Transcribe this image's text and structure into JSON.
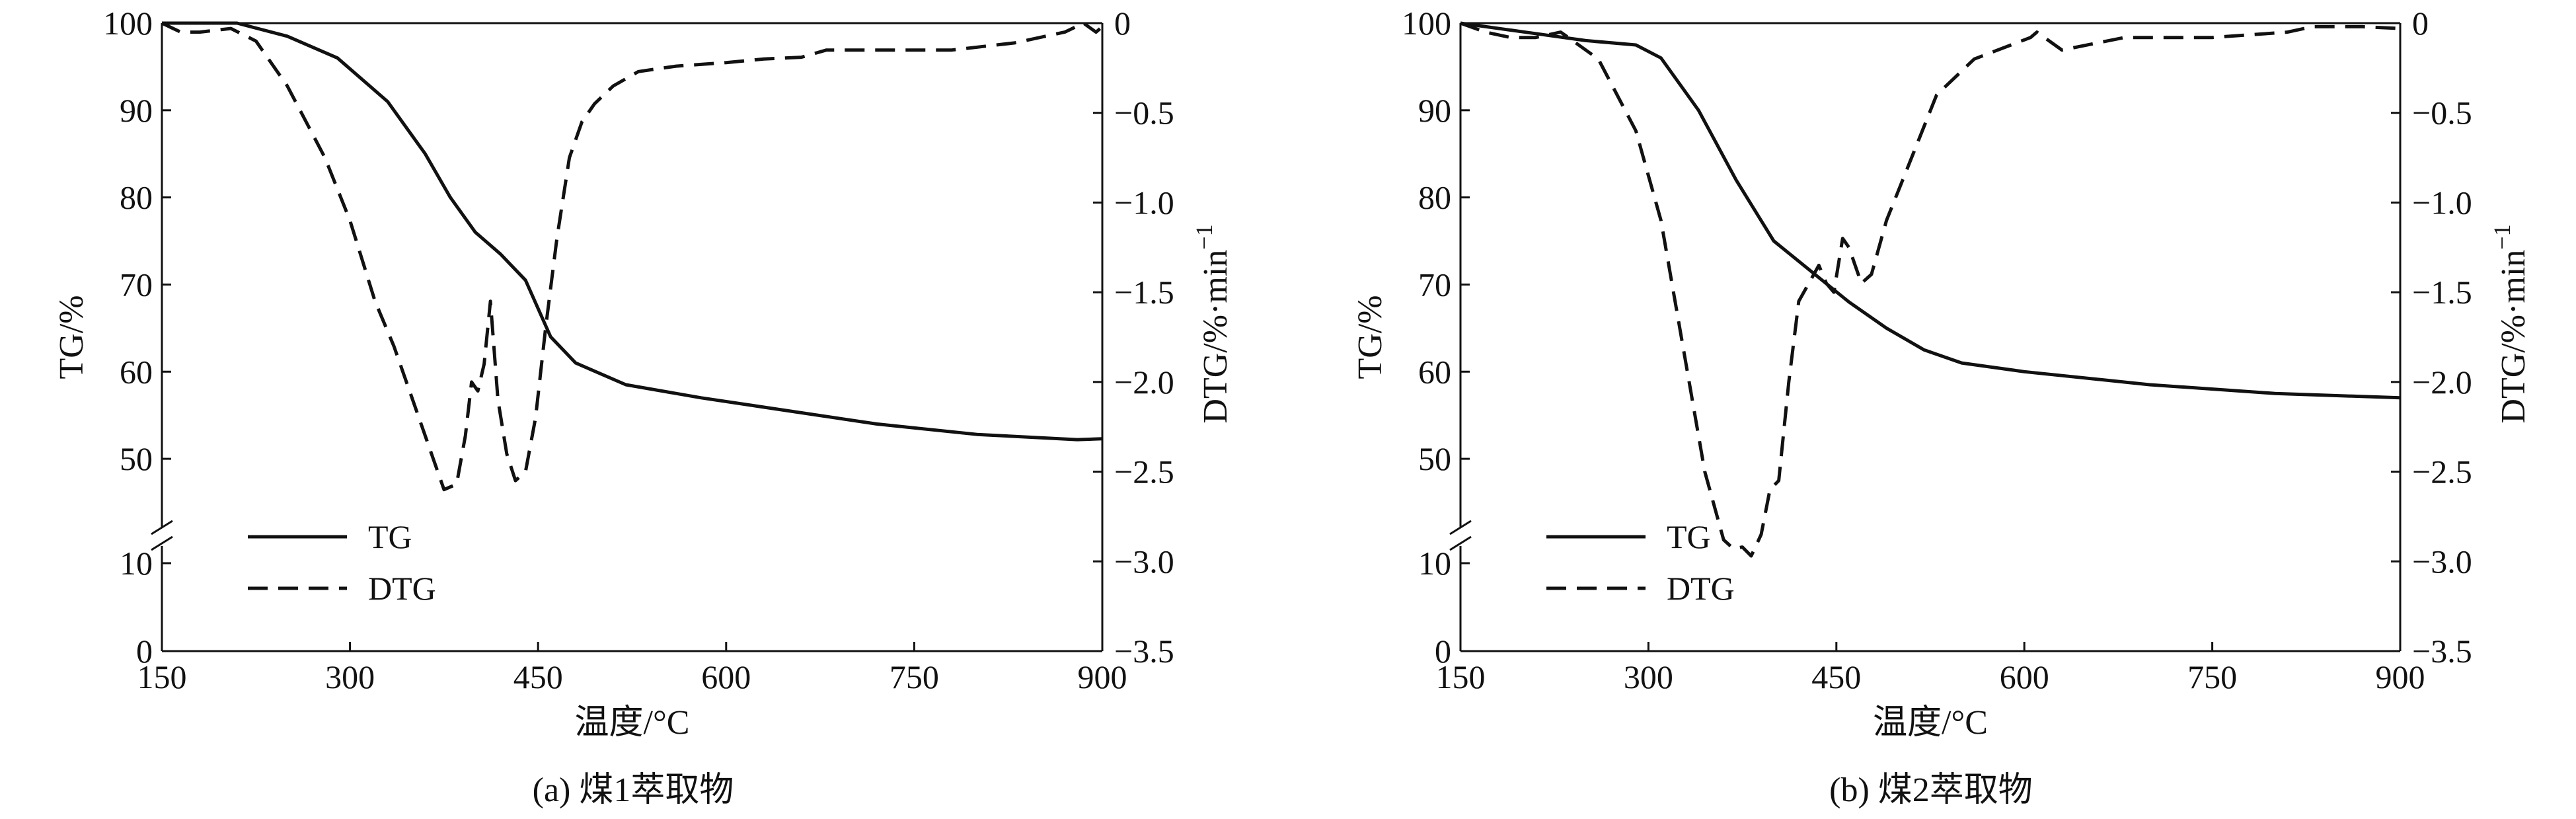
{
  "colors": {
    "ink": "#111111",
    "background": "#ffffff"
  },
  "chart_data": [
    {
      "type": "line",
      "caption": "(a) 煤1萃取物",
      "xlabel": "温度/°C",
      "ylabel_left": "TG/%",
      "ylabel_right": "DTG/%·min",
      "ylabel_right_superscript": "−1",
      "xlim": [
        150,
        900
      ],
      "x_ticks": [
        "150",
        "300",
        "450",
        "600",
        "750",
        "900"
      ],
      "y_left_ticks": [
        "0",
        "10",
        "50",
        "60",
        "70",
        "80",
        "90",
        "100"
      ],
      "y_left_axis_break": [
        10,
        45
      ],
      "y_right_lim": [
        -3.5,
        0
      ],
      "y_right_ticks": [
        "0",
        "−0.5",
        "−1.0",
        "−1.5",
        "−2.0",
        "−2.5",
        "−3.0",
        "−3.5"
      ],
      "legend": {
        "position": "bottom-left",
        "entries": [
          "TG",
          "DTG"
        ]
      },
      "series": [
        {
          "name": "TG",
          "axis": "left",
          "style": "solid",
          "x": [
            150,
            210,
            250,
            290,
            330,
            360,
            380,
            400,
            420,
            440,
            460,
            480,
            520,
            580,
            650,
            720,
            800,
            880,
            900
          ],
          "y": [
            100,
            100,
            98.5,
            96,
            91,
            85,
            80,
            76,
            73.5,
            70.5,
            64,
            61,
            58.5,
            57,
            55.5,
            54,
            52.8,
            52.2,
            52.3
          ]
        },
        {
          "name": "DTG",
          "axis": "right",
          "style": "dashed",
          "x": [
            150,
            165,
            180,
            205,
            225,
            250,
            280,
            300,
            320,
            335,
            350,
            365,
            375,
            385,
            392,
            397,
            402,
            407,
            412,
            418,
            425,
            432,
            440,
            448,
            456,
            465,
            475,
            485,
            495,
            510,
            530,
            560,
            600,
            630,
            660,
            680,
            720,
            780,
            830,
            870,
            885,
            895,
            900
          ],
          "y": [
            0,
            -0.05,
            -0.05,
            -0.03,
            -0.1,
            -0.35,
            -0.75,
            -1.1,
            -1.55,
            -1.8,
            -2.1,
            -2.4,
            -2.6,
            -2.57,
            -2.3,
            -2.0,
            -2.05,
            -1.9,
            -1.55,
            -2.1,
            -2.4,
            -2.55,
            -2.5,
            -2.2,
            -1.7,
            -1.2,
            -0.75,
            -0.55,
            -0.45,
            -0.35,
            -0.27,
            -0.24,
            -0.22,
            -0.2,
            -0.19,
            -0.15,
            -0.15,
            -0.15,
            -0.11,
            -0.05,
            0,
            -0.05,
            -0.02
          ]
        }
      ]
    },
    {
      "type": "line",
      "caption": "(b) 煤2萃取物",
      "xlabel": "温度/°C",
      "ylabel_left": "TG/%",
      "ylabel_right": "DTG/%·min",
      "ylabel_right_superscript": "−1",
      "xlim": [
        150,
        900
      ],
      "x_ticks": [
        "150",
        "300",
        "450",
        "600",
        "750",
        "900"
      ],
      "y_left_ticks": [
        "0",
        "10",
        "50",
        "60",
        "70",
        "80",
        "90",
        "100"
      ],
      "y_left_axis_break": [
        10,
        45
      ],
      "y_right_lim": [
        -3.5,
        0
      ],
      "y_right_ticks": [
        "0",
        "−0.5",
        "−1.0",
        "−1.5",
        "−2.0",
        "−2.5",
        "−3.0",
        "−3.5"
      ],
      "legend": {
        "position": "bottom-left",
        "entries": [
          "TG",
          "DTG"
        ]
      },
      "series": [
        {
          "name": "TG",
          "axis": "left",
          "style": "solid",
          "x": [
            150,
            200,
            250,
            290,
            310,
            340,
            370,
            400,
            430,
            460,
            490,
            520,
            550,
            600,
            700,
            800,
            900
          ],
          "y": [
            100,
            99,
            98,
            97.5,
            96,
            90,
            82,
            75,
            71.5,
            68,
            65,
            62.5,
            61,
            60,
            58.5,
            57.5,
            57
          ]
        },
        {
          "name": "DTG",
          "axis": "right",
          "style": "dashed",
          "x": [
            150,
            170,
            190,
            210,
            230,
            260,
            290,
            310,
            330,
            345,
            360,
            368,
            375,
            382,
            390,
            397,
            404,
            412,
            420,
            428,
            436,
            442,
            448,
            455,
            460,
            465,
            470,
            478,
            490,
            510,
            530,
            560,
            590,
            605,
            610,
            630,
            680,
            750,
            810,
            830,
            870,
            900
          ],
          "y": [
            0,
            -0.05,
            -0.08,
            -0.08,
            -0.05,
            -0.2,
            -0.6,
            -1.1,
            -1.9,
            -2.5,
            -2.88,
            -2.93,
            -2.92,
            -2.97,
            -2.85,
            -2.6,
            -2.55,
            -2.0,
            -1.55,
            -1.45,
            -1.35,
            -1.45,
            -1.5,
            -1.2,
            -1.25,
            -1.35,
            -1.45,
            -1.4,
            -1.1,
            -0.75,
            -0.4,
            -0.2,
            -0.12,
            -0.08,
            -0.05,
            -0.15,
            -0.08,
            -0.08,
            -0.05,
            -0.02,
            -0.02,
            -0.03
          ]
        }
      ]
    }
  ]
}
